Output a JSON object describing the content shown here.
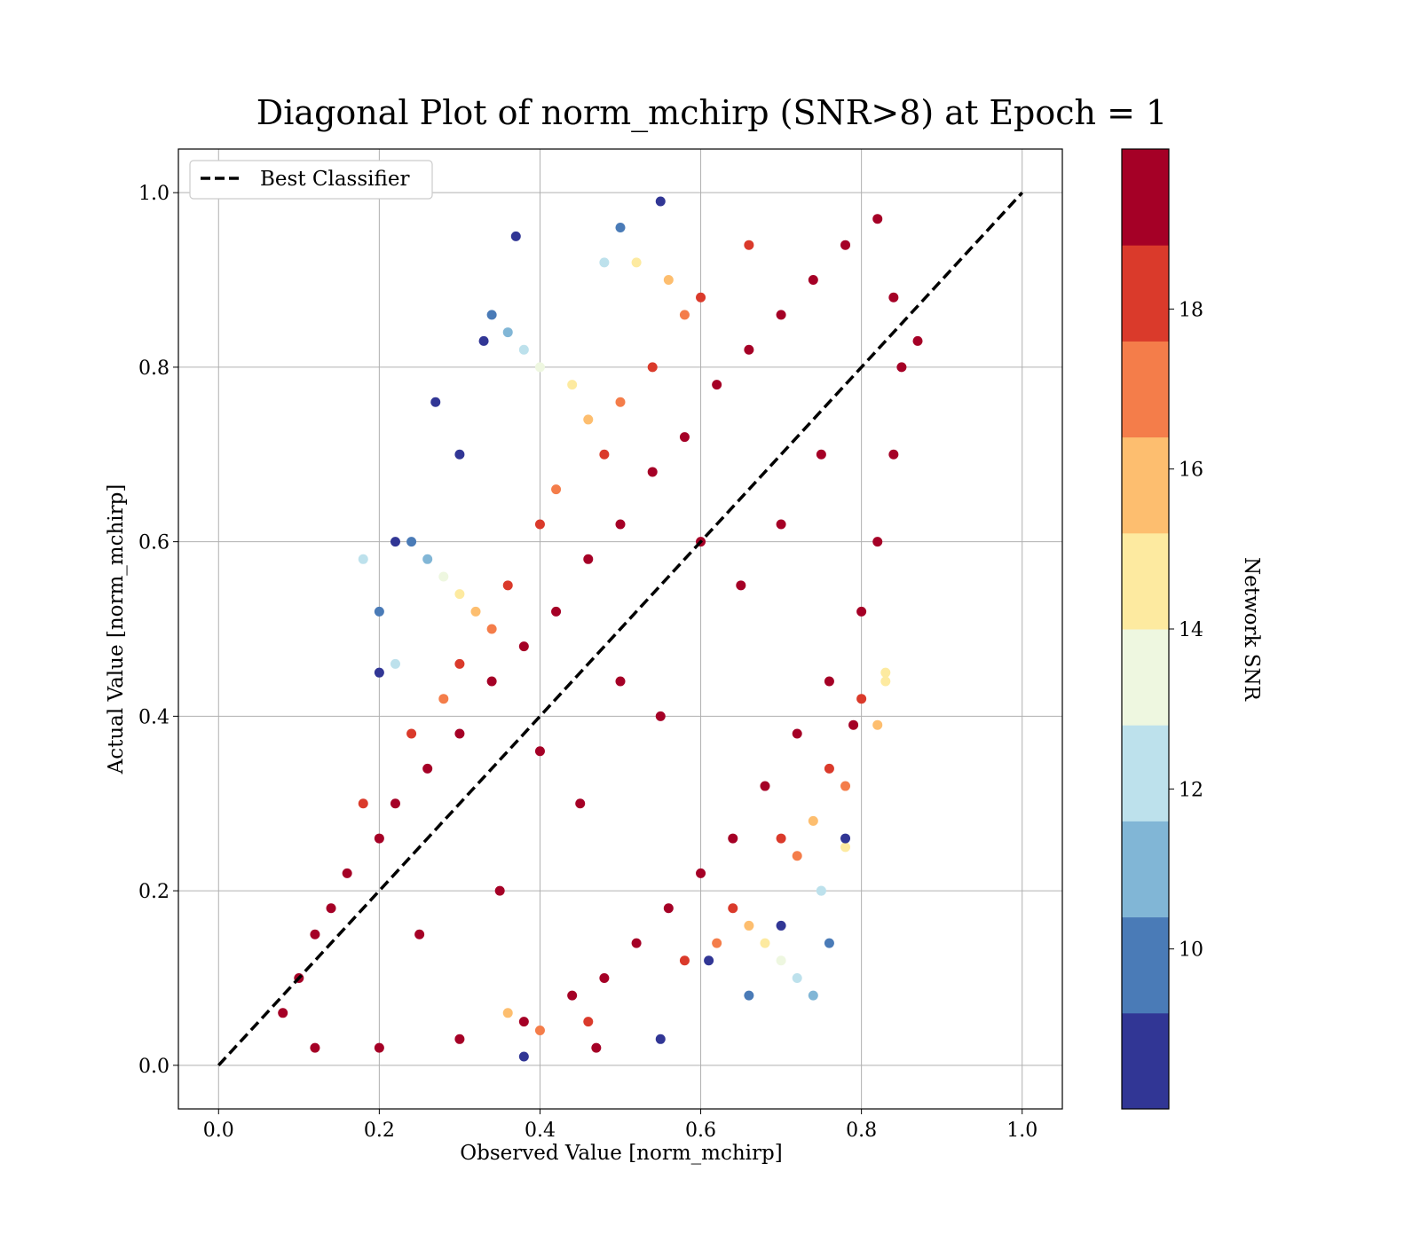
{
  "chart_data": {
    "type": "scatter",
    "title": "Diagonal Plot of norm_mchirp (SNR>8) at Epoch = 1",
    "xlabel": "Observed Value [norm_mchirp]",
    "ylabel": "Actual Value [norm_mchirp]",
    "xlim": [
      -0.05,
      1.05
    ],
    "ylim": [
      -0.05,
      1.05
    ],
    "x_ticks": [
      "0.0",
      "0.2",
      "0.4",
      "0.6",
      "0.8",
      "1.0"
    ],
    "y_ticks": [
      "0.0",
      "0.2",
      "0.4",
      "0.6",
      "0.8",
      "1.0"
    ],
    "grid": true,
    "legend": {
      "placement": "top-left",
      "entries": [
        "Best Classifier"
      ]
    },
    "reference_line": {
      "name": "Best Classifier",
      "style": "dashed",
      "color": "#000000",
      "x": [
        0.0,
        1.0
      ],
      "y": [
        0.0,
        1.0
      ]
    },
    "colorbar": {
      "label": "Network SNR",
      "range": [
        8,
        20
      ],
      "ticks": [
        "10",
        "12",
        "14",
        "16",
        "18"
      ],
      "bins": [
        {
          "from": 8.0,
          "to": 9.2,
          "color": "#313695"
        },
        {
          "from": 9.2,
          "to": 10.4,
          "color": "#4a7bb7"
        },
        {
          "from": 10.4,
          "to": 11.6,
          "color": "#81b6d6"
        },
        {
          "from": 11.6,
          "to": 12.8,
          "color": "#bde1ec"
        },
        {
          "from": 12.8,
          "to": 14.0,
          "color": "#eef7e0"
        },
        {
          "from": 14.0,
          "to": 15.2,
          "color": "#fdeaa0"
        },
        {
          "from": 15.2,
          "to": 16.4,
          "color": "#fdbe6f"
        },
        {
          "from": 16.4,
          "to": 17.6,
          "color": "#f47d4a"
        },
        {
          "from": 17.6,
          "to": 18.8,
          "color": "#da3a2b"
        },
        {
          "from": 18.8,
          "to": 20.0,
          "color": "#a50026"
        }
      ]
    },
    "points": [
      {
        "x": 0.08,
        "y": 0.06,
        "snr": 19
      },
      {
        "x": 0.1,
        "y": 0.1,
        "snr": 19
      },
      {
        "x": 0.12,
        "y": 0.15,
        "snr": 19
      },
      {
        "x": 0.14,
        "y": 0.18,
        "snr": 19
      },
      {
        "x": 0.16,
        "y": 0.22,
        "snr": 19
      },
      {
        "x": 0.2,
        "y": 0.26,
        "snr": 19
      },
      {
        "x": 0.22,
        "y": 0.3,
        "snr": 19
      },
      {
        "x": 0.26,
        "y": 0.34,
        "snr": 19
      },
      {
        "x": 0.3,
        "y": 0.38,
        "snr": 19
      },
      {
        "x": 0.34,
        "y": 0.44,
        "snr": 19
      },
      {
        "x": 0.38,
        "y": 0.48,
        "snr": 19
      },
      {
        "x": 0.42,
        "y": 0.52,
        "snr": 19
      },
      {
        "x": 0.46,
        "y": 0.58,
        "snr": 19
      },
      {
        "x": 0.5,
        "y": 0.62,
        "snr": 19
      },
      {
        "x": 0.54,
        "y": 0.68,
        "snr": 19
      },
      {
        "x": 0.58,
        "y": 0.72,
        "snr": 19
      },
      {
        "x": 0.62,
        "y": 0.78,
        "snr": 19
      },
      {
        "x": 0.66,
        "y": 0.82,
        "snr": 19
      },
      {
        "x": 0.7,
        "y": 0.86,
        "snr": 19
      },
      {
        "x": 0.74,
        "y": 0.9,
        "snr": 19
      },
      {
        "x": 0.78,
        "y": 0.94,
        "snr": 19
      },
      {
        "x": 0.82,
        "y": 0.97,
        "snr": 19
      },
      {
        "x": 0.84,
        "y": 0.88,
        "snr": 19
      },
      {
        "x": 0.85,
        "y": 0.8,
        "snr": 19
      },
      {
        "x": 0.84,
        "y": 0.7,
        "snr": 19
      },
      {
        "x": 0.82,
        "y": 0.6,
        "snr": 19
      },
      {
        "x": 0.8,
        "y": 0.52,
        "snr": 19
      },
      {
        "x": 0.76,
        "y": 0.44,
        "snr": 19
      },
      {
        "x": 0.72,
        "y": 0.38,
        "snr": 19
      },
      {
        "x": 0.68,
        "y": 0.32,
        "snr": 19
      },
      {
        "x": 0.64,
        "y": 0.26,
        "snr": 19
      },
      {
        "x": 0.6,
        "y": 0.22,
        "snr": 19
      },
      {
        "x": 0.56,
        "y": 0.18,
        "snr": 19
      },
      {
        "x": 0.52,
        "y": 0.14,
        "snr": 19
      },
      {
        "x": 0.48,
        "y": 0.1,
        "snr": 19
      },
      {
        "x": 0.44,
        "y": 0.08,
        "snr": 19
      },
      {
        "x": 0.38,
        "y": 0.05,
        "snr": 19
      },
      {
        "x": 0.3,
        "y": 0.03,
        "snr": 19
      },
      {
        "x": 0.2,
        "y": 0.02,
        "snr": 19
      },
      {
        "x": 0.12,
        "y": 0.02,
        "snr": 19
      },
      {
        "x": 0.55,
        "y": 0.4,
        "snr": 19
      },
      {
        "x": 0.45,
        "y": 0.3,
        "snr": 19
      },
      {
        "x": 0.35,
        "y": 0.2,
        "snr": 19
      },
      {
        "x": 0.65,
        "y": 0.55,
        "snr": 19
      },
      {
        "x": 0.75,
        "y": 0.7,
        "snr": 19
      },
      {
        "x": 0.25,
        "y": 0.15,
        "snr": 19
      },
      {
        "x": 0.4,
        "y": 0.36,
        "snr": 19
      },
      {
        "x": 0.6,
        "y": 0.6,
        "snr": 19
      },
      {
        "x": 0.7,
        "y": 0.62,
        "snr": 19
      },
      {
        "x": 0.5,
        "y": 0.44,
        "snr": 19
      },
      {
        "x": 0.36,
        "y": 0.55,
        "snr": 18
      },
      {
        "x": 0.4,
        "y": 0.62,
        "snr": 18
      },
      {
        "x": 0.48,
        "y": 0.7,
        "snr": 18
      },
      {
        "x": 0.54,
        "y": 0.8,
        "snr": 18
      },
      {
        "x": 0.6,
        "y": 0.88,
        "snr": 18
      },
      {
        "x": 0.66,
        "y": 0.94,
        "snr": 18
      },
      {
        "x": 0.3,
        "y": 0.46,
        "snr": 18
      },
      {
        "x": 0.24,
        "y": 0.38,
        "snr": 18
      },
      {
        "x": 0.18,
        "y": 0.3,
        "snr": 18
      },
      {
        "x": 0.58,
        "y": 0.12,
        "snr": 18
      },
      {
        "x": 0.64,
        "y": 0.18,
        "snr": 18
      },
      {
        "x": 0.7,
        "y": 0.26,
        "snr": 18
      },
      {
        "x": 0.76,
        "y": 0.34,
        "snr": 18
      },
      {
        "x": 0.8,
        "y": 0.42,
        "snr": 18
      },
      {
        "x": 0.46,
        "y": 0.05,
        "snr": 18
      },
      {
        "x": 0.34,
        "y": 0.5,
        "snr": 17
      },
      {
        "x": 0.42,
        "y": 0.66,
        "snr": 17
      },
      {
        "x": 0.5,
        "y": 0.76,
        "snr": 17
      },
      {
        "x": 0.58,
        "y": 0.86,
        "snr": 17
      },
      {
        "x": 0.28,
        "y": 0.42,
        "snr": 17
      },
      {
        "x": 0.62,
        "y": 0.14,
        "snr": 17
      },
      {
        "x": 0.72,
        "y": 0.24,
        "snr": 17
      },
      {
        "x": 0.78,
        "y": 0.32,
        "snr": 17
      },
      {
        "x": 0.4,
        "y": 0.04,
        "snr": 17
      },
      {
        "x": 0.32,
        "y": 0.52,
        "snr": 16
      },
      {
        "x": 0.46,
        "y": 0.74,
        "snr": 16
      },
      {
        "x": 0.56,
        "y": 0.9,
        "snr": 16
      },
      {
        "x": 0.66,
        "y": 0.16,
        "snr": 16
      },
      {
        "x": 0.74,
        "y": 0.28,
        "snr": 16
      },
      {
        "x": 0.36,
        "y": 0.06,
        "snr": 16
      },
      {
        "x": 0.3,
        "y": 0.54,
        "snr": 15
      },
      {
        "x": 0.44,
        "y": 0.78,
        "snr": 15
      },
      {
        "x": 0.52,
        "y": 0.92,
        "snr": 15
      },
      {
        "x": 0.68,
        "y": 0.14,
        "snr": 15
      },
      {
        "x": 0.78,
        "y": 0.25,
        "snr": 15
      },
      {
        "x": 0.83,
        "y": 0.44,
        "snr": 15
      },
      {
        "x": 0.28,
        "y": 0.56,
        "snr": 13
      },
      {
        "x": 0.4,
        "y": 0.8,
        "snr": 13
      },
      {
        "x": 0.7,
        "y": 0.12,
        "snr": 13
      },
      {
        "x": 0.22,
        "y": 0.46,
        "snr": 12
      },
      {
        "x": 0.38,
        "y": 0.82,
        "snr": 12
      },
      {
        "x": 0.48,
        "y": 0.92,
        "snr": 12
      },
      {
        "x": 0.72,
        "y": 0.1,
        "snr": 12
      },
      {
        "x": 0.18,
        "y": 0.58,
        "snr": 12
      },
      {
        "x": 0.75,
        "y": 0.2,
        "snr": 12
      },
      {
        "x": 0.26,
        "y": 0.58,
        "snr": 11
      },
      {
        "x": 0.36,
        "y": 0.84,
        "snr": 11
      },
      {
        "x": 0.74,
        "y": 0.08,
        "snr": 11
      },
      {
        "x": 0.24,
        "y": 0.6,
        "snr": 10
      },
      {
        "x": 0.34,
        "y": 0.86,
        "snr": 10
      },
      {
        "x": 0.5,
        "y": 0.96,
        "snr": 10
      },
      {
        "x": 0.66,
        "y": 0.08,
        "snr": 10
      },
      {
        "x": 0.76,
        "y": 0.14,
        "snr": 10
      },
      {
        "x": 0.2,
        "y": 0.52,
        "snr": 10
      },
      {
        "x": 0.22,
        "y": 0.6,
        "snr": 8.5
      },
      {
        "x": 0.3,
        "y": 0.7,
        "snr": 8.5
      },
      {
        "x": 0.33,
        "y": 0.83,
        "snr": 8.5
      },
      {
        "x": 0.37,
        "y": 0.95,
        "snr": 8.5
      },
      {
        "x": 0.55,
        "y": 0.99,
        "snr": 8.5
      },
      {
        "x": 0.61,
        "y": 0.12,
        "snr": 8.5
      },
      {
        "x": 0.7,
        "y": 0.16,
        "snr": 8.5
      },
      {
        "x": 0.78,
        "y": 0.26,
        "snr": 8.5
      },
      {
        "x": 0.55,
        "y": 0.03,
        "snr": 8.5
      },
      {
        "x": 0.38,
        "y": 0.01,
        "snr": 8.5
      },
      {
        "x": 0.27,
        "y": 0.76,
        "snr": 8.5
      },
      {
        "x": 0.2,
        "y": 0.45,
        "snr": 8.5
      },
      {
        "x": 0.87,
        "y": 0.83,
        "snr": 19
      },
      {
        "x": 0.79,
        "y": 0.39,
        "snr": 19
      },
      {
        "x": 0.47,
        "y": 0.02,
        "snr": 19
      },
      {
        "x": 0.82,
        "y": 0.39,
        "snr": 16
      },
      {
        "x": 0.83,
        "y": 0.45,
        "snr": 15
      },
      {
        "x": 0.75,
        "y": 0.2,
        "snr": 12
      }
    ]
  }
}
